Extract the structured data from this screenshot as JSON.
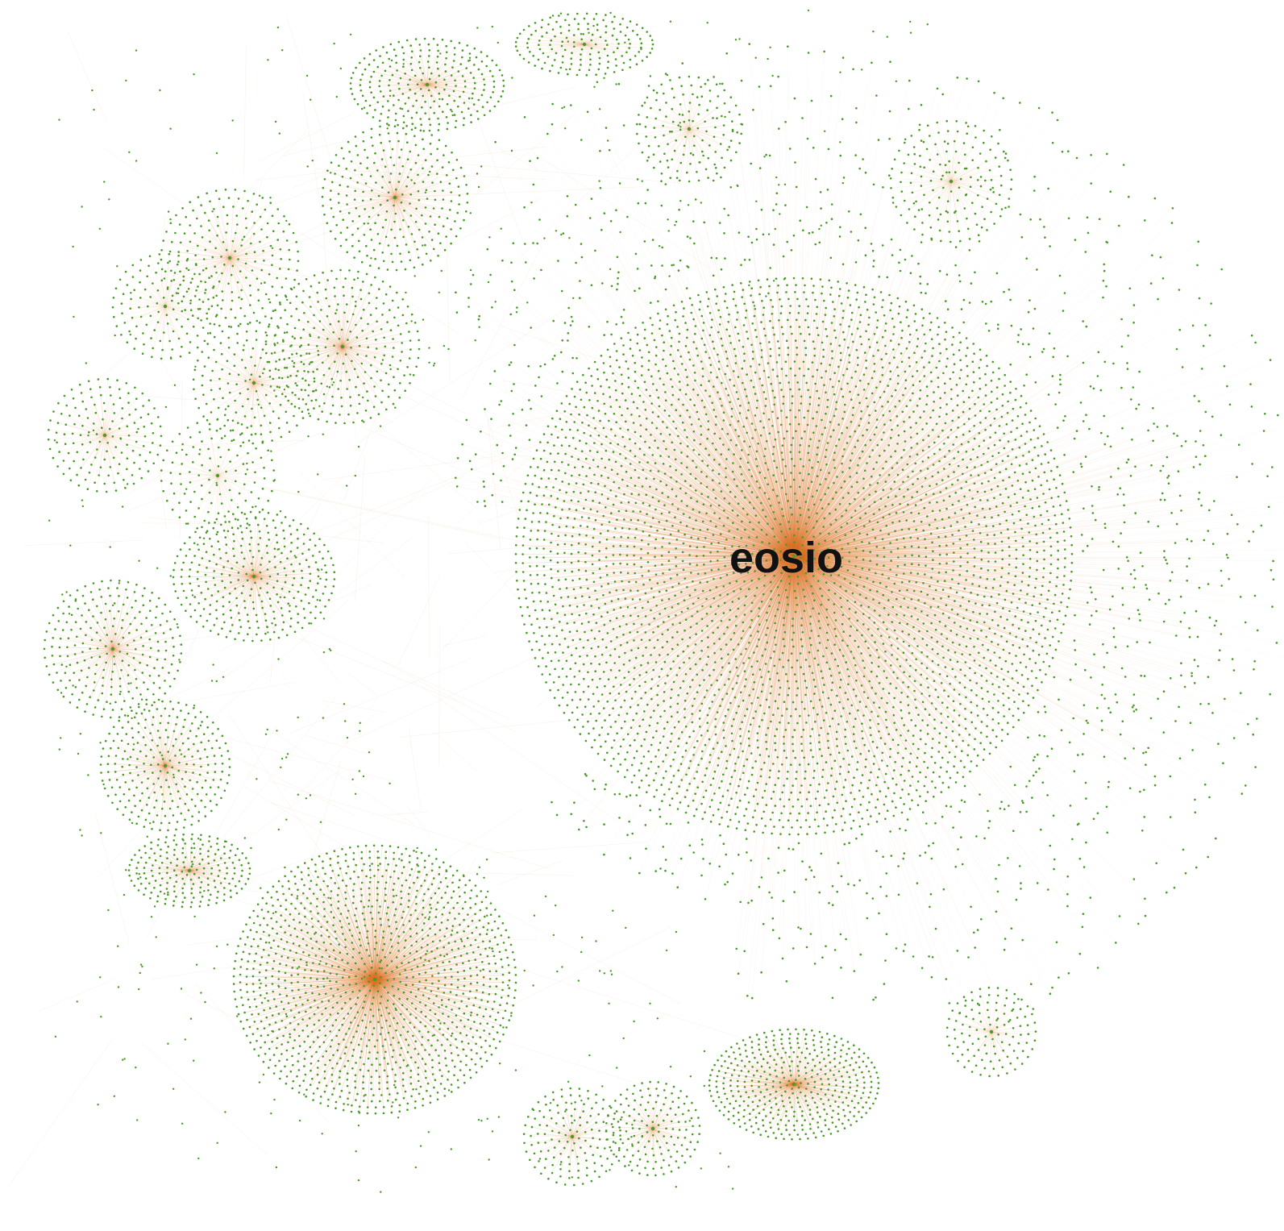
{
  "graph": {
    "hub_label": "eosio",
    "colors": {
      "background": "#ffffff",
      "node": "#4a9a2a",
      "edge": "#e0782a",
      "label": "#111111"
    }
  }
}
